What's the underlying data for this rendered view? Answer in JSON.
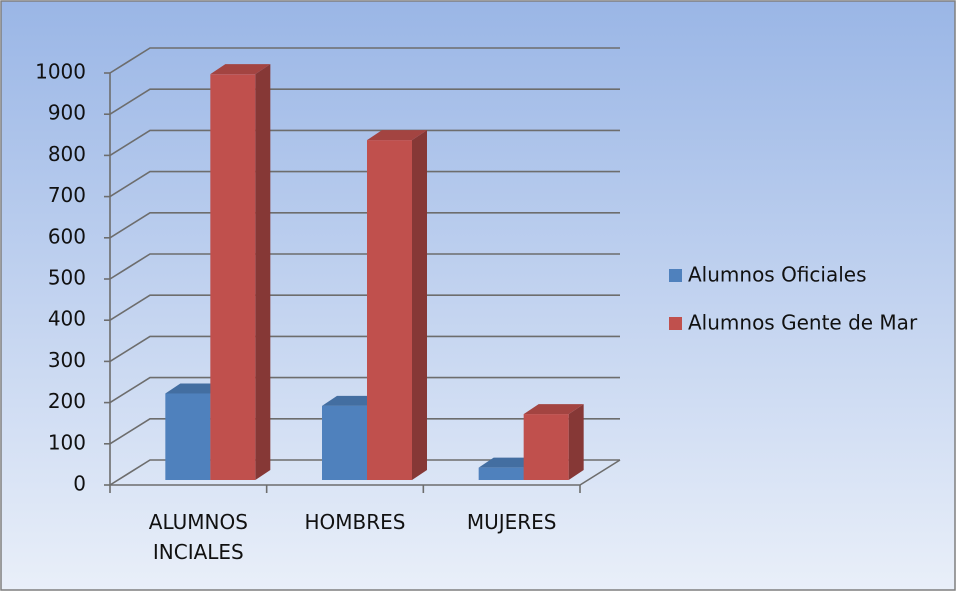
{
  "chart_data": {
    "type": "bar3d",
    "categories": [
      "ALUMNOS INCIALES",
      "HOMBRES",
      "MUJERES"
    ],
    "series": [
      {
        "name": "Alumnos Oficiales",
        "color": "#4f81bd",
        "values": [
          210,
          180,
          30
        ]
      },
      {
        "name": "Alumnos Gente de Mar",
        "color": "#c0504d",
        "values": [
          985,
          825,
          160
        ]
      }
    ],
    "ylim": [
      0,
      1000
    ],
    "yticks": [
      0,
      100,
      200,
      300,
      400,
      500,
      600,
      700,
      800,
      900,
      1000
    ],
    "grid": true,
    "legend": "right"
  }
}
